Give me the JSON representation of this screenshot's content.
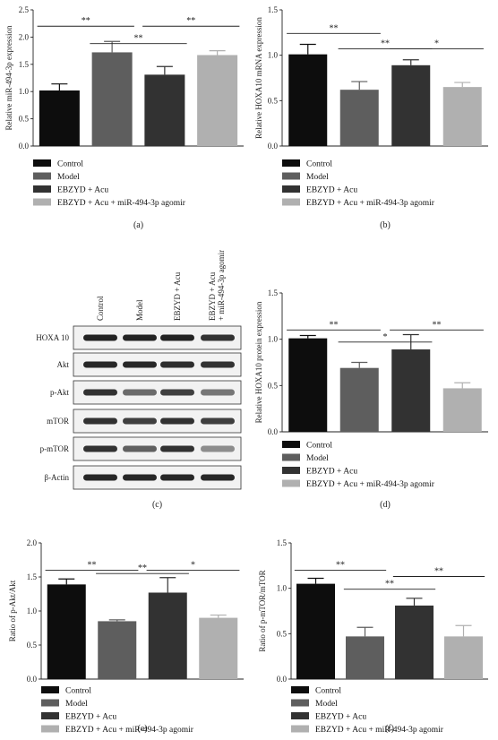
{
  "colors": {
    "control": "#0d0d0d",
    "model": "#5e5e5e",
    "ebzyd": "#323232",
    "agomir": "#b0b0b0"
  },
  "legend": [
    "Control",
    "Model",
    "EBZYD + Acu",
    "EBZYD + Acu + miR-494-3p agomir"
  ],
  "chart_data": [
    {
      "panel": "(a)",
      "type": "bar",
      "categories": [
        "Control",
        "Model",
        "EBZYD + Acu",
        "EBZYD + Acu + miR-494-3p agomir"
      ],
      "values": [
        1.02,
        1.72,
        1.31,
        1.67
      ],
      "errors": [
        0.12,
        0.2,
        0.15,
        0.08
      ],
      "ylabel": "Relative miR-494-3p expression",
      "ylim": [
        0,
        2.5
      ],
      "yticks": [
        "0.0",
        "0.5",
        "1.0",
        "1.5",
        "2.0",
        "2.5"
      ],
      "significance": [
        {
          "from": 0,
          "to": 1,
          "label": "**",
          "y": 2.2
        },
        {
          "from": 1,
          "to": 2,
          "label": "**",
          "y": 1.88
        },
        {
          "from": 2,
          "to": 3,
          "label": "**",
          "y": 2.2
        }
      ]
    },
    {
      "panel": "(b)",
      "type": "bar",
      "categories": [
        "Control",
        "Model",
        "EBZYD + Acu",
        "EBZYD + Acu + miR-494-3p agomir"
      ],
      "values": [
        1.01,
        0.62,
        0.89,
        0.65
      ],
      "errors": [
        0.11,
        0.09,
        0.06,
        0.05
      ],
      "ylabel": "Relative HOXA10 mRNA expression",
      "ylim": [
        0,
        1.5
      ],
      "yticks": [
        "0.0",
        "0.5",
        "1.0",
        "1.5"
      ],
      "significance": [
        {
          "from": 0,
          "to": 1,
          "label": "**",
          "y": 1.24
        },
        {
          "from": 1,
          "to": 2,
          "label": "**",
          "y": 1.07
        },
        {
          "from": 2,
          "to": 3,
          "label": "*",
          "y": 1.07
        }
      ]
    },
    {
      "panel": "(d)",
      "type": "bar",
      "categories": [
        "Control",
        "Model",
        "EBZYD + Acu",
        "EBZYD + Acu + miR-494-3p agomir"
      ],
      "values": [
        1.01,
        0.69,
        0.89,
        0.47
      ],
      "errors": [
        0.03,
        0.06,
        0.16,
        0.06
      ],
      "ylabel": "Relative HOXA10 protein expression",
      "ylim": [
        0,
        1.5
      ],
      "yticks": [
        "0.0",
        "0.5",
        "1.0",
        "1.5"
      ],
      "significance": [
        {
          "from": 0,
          "to": 1,
          "label": "**",
          "y": 1.1
        },
        {
          "from": 1,
          "to": 2,
          "label": "*",
          "y": 0.97
        },
        {
          "from": 2,
          "to": 3,
          "label": "**",
          "y": 1.1
        }
      ]
    },
    {
      "panel": "(e)",
      "type": "bar",
      "categories": [
        "Control",
        "Model",
        "EBZYD + Acu",
        "EBZYD + Acu + miR-494-3p agomir"
      ],
      "values": [
        1.39,
        0.85,
        1.27,
        0.9
      ],
      "errors": [
        0.08,
        0.02,
        0.22,
        0.04
      ],
      "ylabel": "Ratio of p-Akt/Akt",
      "ylim": [
        0,
        2.0
      ],
      "yticks": [
        "0.0",
        "0.5",
        "1.0",
        "1.5",
        "2.0"
      ],
      "significance": [
        {
          "from": 0,
          "to": 1,
          "label": "**",
          "y": 1.6
        },
        {
          "from": 1,
          "to": 2,
          "label": "**",
          "y": 1.55
        },
        {
          "from": 2,
          "to": 3,
          "label": "*",
          "y": 1.6
        }
      ]
    },
    {
      "panel": "(f)",
      "type": "bar",
      "categories": [
        "Control",
        "Model",
        "EBZYD + Acu",
        "EBZYD + Acu + miR-494-3p agomir"
      ],
      "values": [
        1.05,
        0.47,
        0.81,
        0.47
      ],
      "errors": [
        0.06,
        0.1,
        0.08,
        0.12
      ],
      "ylabel": "Ratio of p-mTOR/mTOR",
      "ylim": [
        0,
        1.5
      ],
      "yticks": [
        "0.0",
        "0.5",
        "1.0",
        "1.5"
      ],
      "significance": [
        {
          "from": 0,
          "to": 1,
          "label": "**",
          "y": 1.2
        },
        {
          "from": 1,
          "to": 2,
          "label": "**",
          "y": 0.99
        },
        {
          "from": 2,
          "to": 3,
          "label": "**",
          "y": 1.13
        }
      ]
    }
  ],
  "blot": {
    "panel": "(c)",
    "lanes": [
      "Control",
      "Model",
      "EBZYD + Acu",
      "EBZYD + Acu + miR-494-3p agomir"
    ],
    "rows": [
      "HOXA 10",
      "Akt",
      "p-Akt",
      "mTOR",
      "p-mTOR",
      "β-Actin"
    ]
  }
}
